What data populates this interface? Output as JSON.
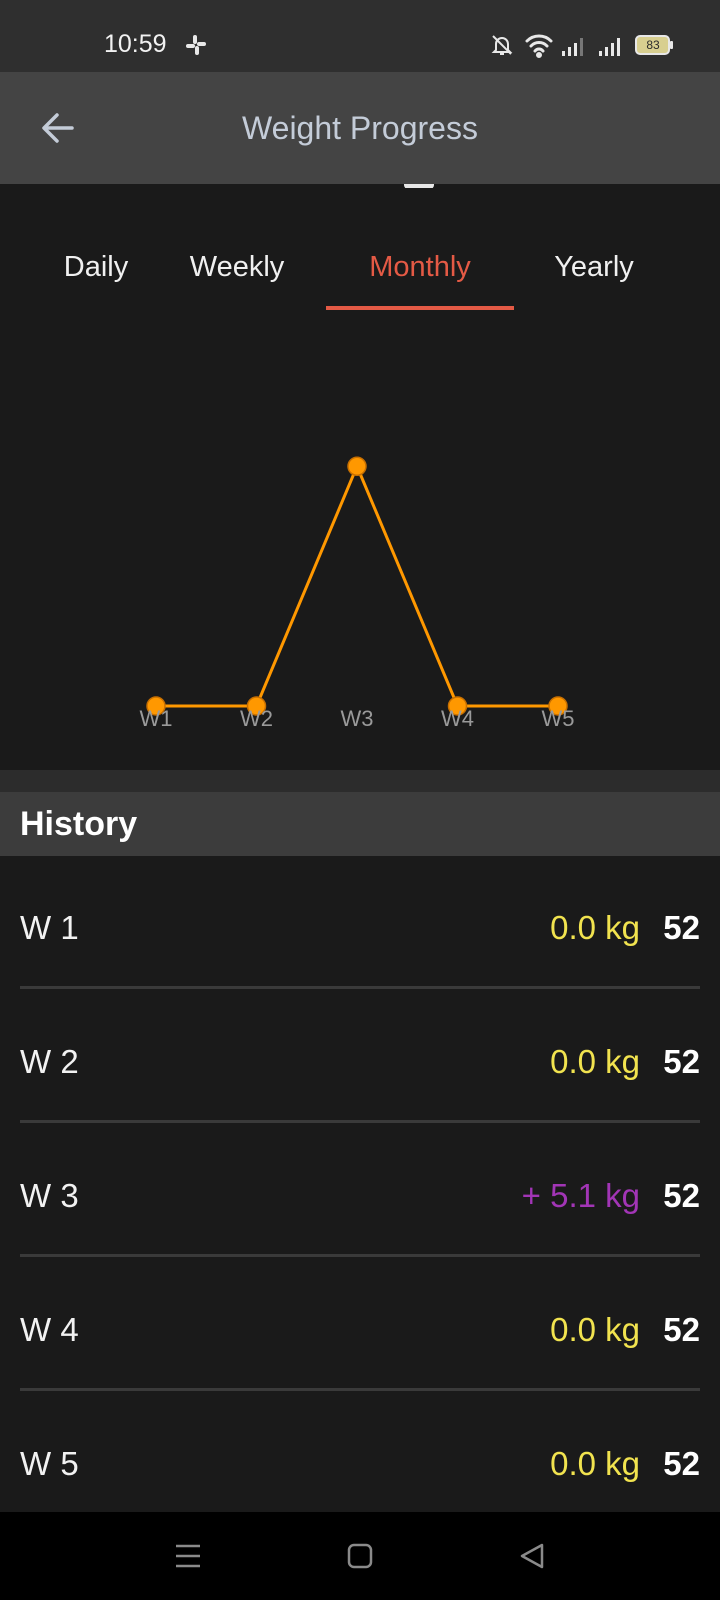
{
  "status_bar": {
    "time": "10:59",
    "battery": "83",
    "icons": [
      "slack-icon",
      "bell-off-icon",
      "wifi-icon",
      "signal-icon",
      "signal-icon",
      "battery-icon"
    ]
  },
  "app_bar": {
    "title": "Weight Progress",
    "back_icon": "arrow-left-icon"
  },
  "tabs": [
    {
      "label": "Daily",
      "active": false
    },
    {
      "label": "Weekly",
      "active": false
    },
    {
      "label": "Monthly",
      "active": true
    },
    {
      "label": "Yearly",
      "active": false
    }
  ],
  "colors": {
    "accent": "#e45a45",
    "chart_line": "#ff9800",
    "loss_or_zero": "#f1e34f",
    "gain": "#a235b6"
  },
  "chart_data": {
    "type": "line",
    "categories": [
      "W1",
      "W2",
      "W3",
      "W4",
      "W5"
    ],
    "series": [
      {
        "values": [
          0.0,
          0.0,
          5.1,
          0.0,
          0.0
        ]
      }
    ],
    "ylim": [
      -2,
      8
    ]
  },
  "history": {
    "title": "History",
    "rows": [
      {
        "label": "W 1",
        "change": "0.0 kg",
        "weight": "52"
      },
      {
        "label": "W 2",
        "change": "0.0 kg",
        "weight": "52"
      },
      {
        "label": "W 3",
        "change": "+ 5.1 kg",
        "weight": "52"
      },
      {
        "label": "W 4",
        "change": "0.0 kg",
        "weight": "52"
      },
      {
        "label": "W 5",
        "change": "0.0 kg",
        "weight": "52"
      }
    ]
  },
  "nav_bar": {
    "icons": [
      "menu-icon",
      "home-square-icon",
      "back-triangle-icon"
    ]
  }
}
